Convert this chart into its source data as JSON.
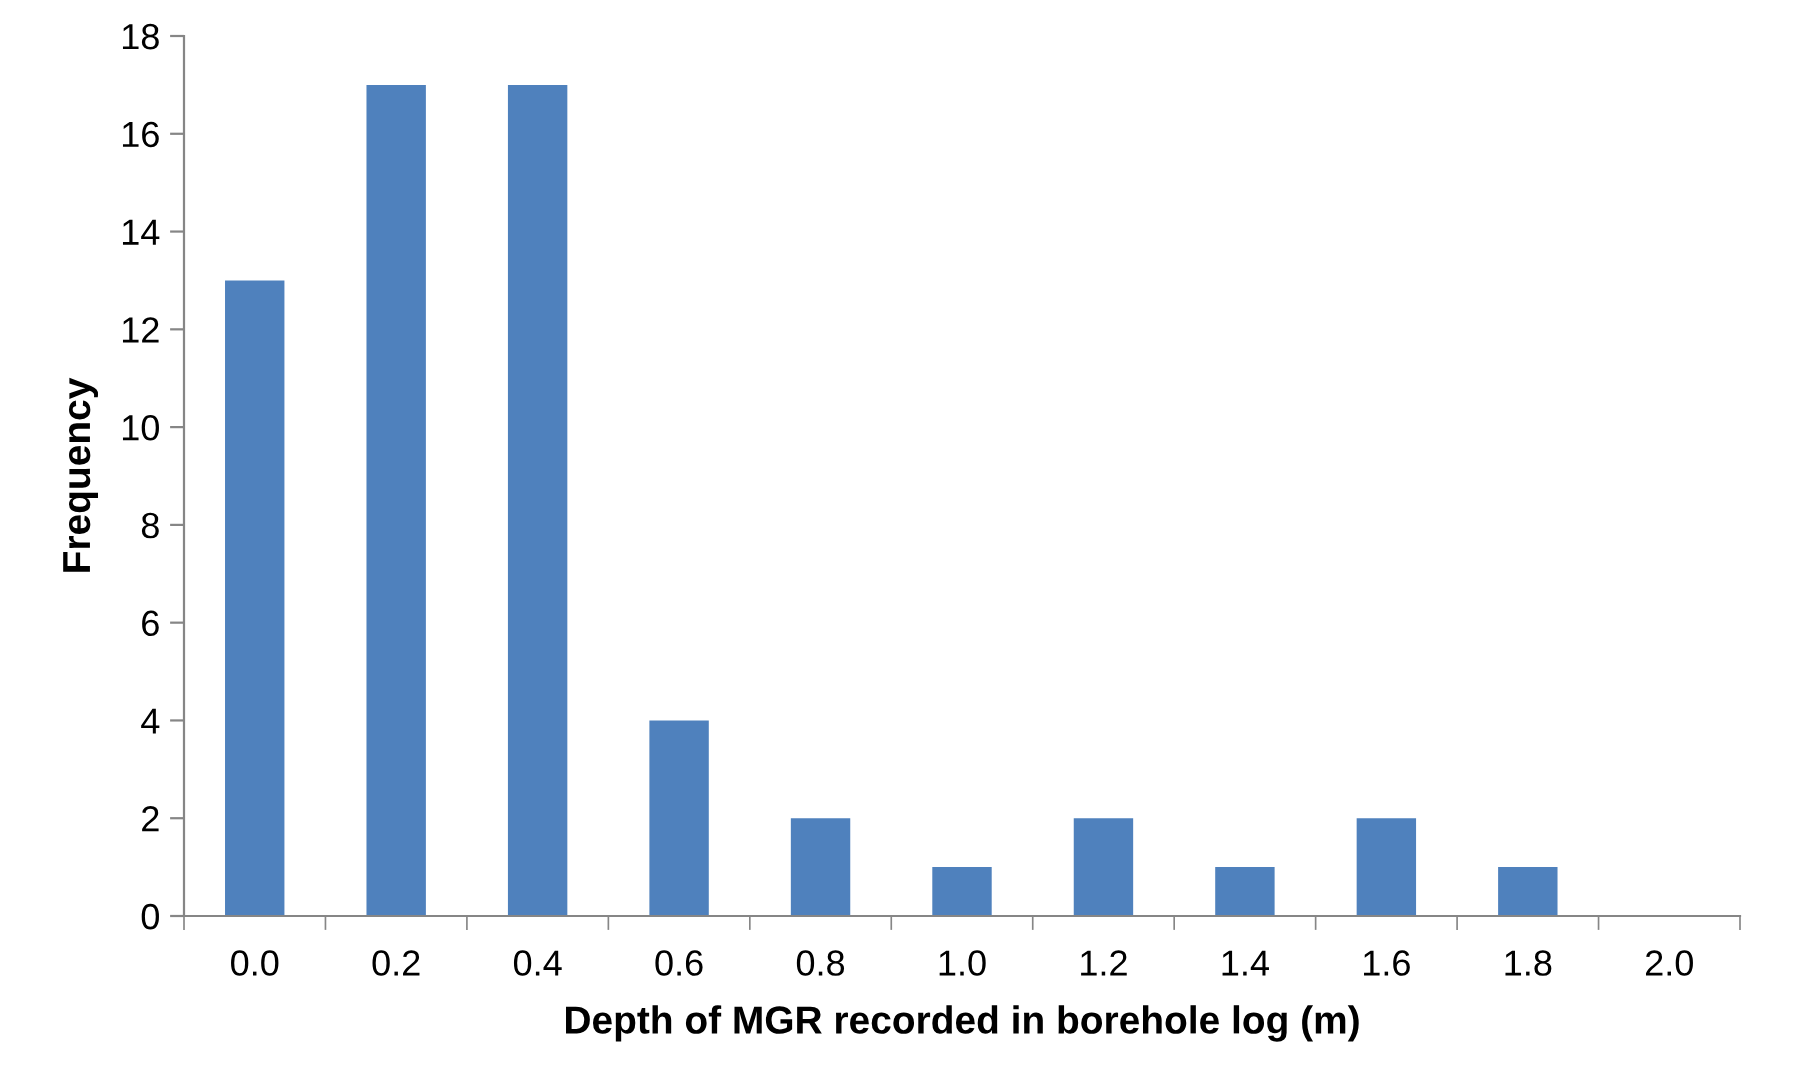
{
  "chart_data": {
    "type": "bar",
    "xlabel": "Depth of MGR recorded in borehole log (m)",
    "ylabel": "Frequency",
    "categories": [
      "0.0",
      "0.2",
      "0.4",
      "0.6",
      "0.8",
      "1.0",
      "1.2",
      "1.4",
      "1.6",
      "1.8",
      "2.0"
    ],
    "values": [
      13,
      17,
      17,
      4,
      2,
      1,
      2,
      1,
      2,
      1,
      0
    ],
    "color": "#4f81bd",
    "ylim": [
      0,
      18
    ],
    "yticks": [
      0,
      2,
      4,
      6,
      8,
      10,
      12,
      14,
      16,
      18
    ],
    "grid": false,
    "legend": false
  }
}
